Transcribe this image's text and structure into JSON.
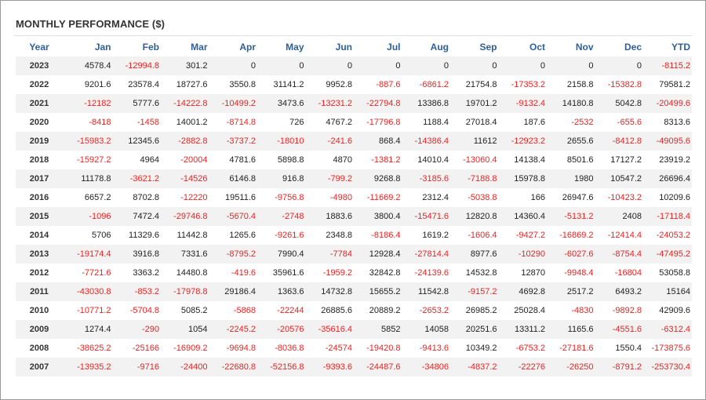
{
  "title": "MONTHLY PERFORMANCE ($)",
  "colors": {
    "header": "#2f5f98",
    "negative": "#ee2222",
    "stripe": "#f2f2f2"
  },
  "headers": [
    "Year",
    "Jan",
    "Feb",
    "Mar",
    "Apr",
    "May",
    "Jun",
    "Jul",
    "Aug",
    "Sep",
    "Oct",
    "Nov",
    "Dec",
    "YTD"
  ],
  "rows": [
    {
      "year": "2023",
      "values": [
        "4578.4",
        "-12994.8",
        "301.2",
        "0",
        "0",
        "0",
        "0",
        "0",
        "0",
        "0",
        "0",
        "0",
        "-8115.2"
      ]
    },
    {
      "year": "2022",
      "values": [
        "9201.6",
        "23578.4",
        "18727.6",
        "3550.8",
        "31141.2",
        "9952.8",
        "-887.6",
        "-6861.2",
        "21754.8",
        "-17353.2",
        "2158.8",
        "-15382.8",
        "79581.2"
      ]
    },
    {
      "year": "2021",
      "values": [
        "-12182",
        "5777.6",
        "-14222.8",
        "-10499.2",
        "3473.6",
        "-13231.2",
        "-22794.8",
        "13386.8",
        "19701.2",
        "-9132.4",
        "14180.8",
        "5042.8",
        "-20499.6"
      ]
    },
    {
      "year": "2020",
      "values": [
        "-8418",
        "-1458",
        "14001.2",
        "-8714.8",
        "726",
        "4767.2",
        "-17796.8",
        "1188.4",
        "27018.4",
        "187.6",
        "-2532",
        "-655.6",
        "8313.6"
      ]
    },
    {
      "year": "2019",
      "values": [
        "-15983.2",
        "12345.6",
        "-2882.8",
        "-3737.2",
        "-18010",
        "-241.6",
        "868.4",
        "-14386.4",
        "11612",
        "-12923.2",
        "2655.6",
        "-8412.8",
        "-49095.6"
      ]
    },
    {
      "year": "2018",
      "values": [
        "-15927.2",
        "4964",
        "-20004",
        "4781.6",
        "5898.8",
        "4870",
        "-1381.2",
        "14010.4",
        "-13060.4",
        "14138.4",
        "8501.6",
        "17127.2",
        "23919.2"
      ]
    },
    {
      "year": "2017",
      "values": [
        "11178.8",
        "-3621.2",
        "-14526",
        "6146.8",
        "916.8",
        "-799.2",
        "9268.8",
        "-3185.6",
        "-7188.8",
        "15978.8",
        "1980",
        "10547.2",
        "26696.4"
      ]
    },
    {
      "year": "2016",
      "values": [
        "6657.2",
        "8702.8",
        "-12220",
        "19511.6",
        "-9756.8",
        "-4980",
        "-11669.2",
        "2312.4",
        "-5038.8",
        "166",
        "26947.6",
        "-10423.2",
        "10209.6"
      ]
    },
    {
      "year": "2015",
      "values": [
        "-1096",
        "7472.4",
        "-29746.8",
        "-5670.4",
        "-2748",
        "1883.6",
        "3800.4",
        "-15471.6",
        "12820.8",
        "14360.4",
        "-5131.2",
        "2408",
        "-17118.4"
      ]
    },
    {
      "year": "2014",
      "values": [
        "5706",
        "11329.6",
        "11442.8",
        "1265.6",
        "-9261.6",
        "2348.8",
        "-8186.4",
        "1619.2",
        "-1606.4",
        "-9427.2",
        "-16869.2",
        "-12414.4",
        "-24053.2"
      ]
    },
    {
      "year": "2013",
      "values": [
        "-19174.4",
        "3916.8",
        "7331.6",
        "-8795.2",
        "7990.4",
        "-7784",
        "12928.4",
        "-27814.4",
        "8977.6",
        "-10290",
        "-6027.6",
        "-8754.4",
        "-47495.2"
      ]
    },
    {
      "year": "2012",
      "values": [
        "-7721.6",
        "3363.2",
        "14480.8",
        "-419.6",
        "35961.6",
        "-1959.2",
        "32842.8",
        "-24139.6",
        "14532.8",
        "12870",
        "-9948.4",
        "-16804",
        "53058.8"
      ]
    },
    {
      "year": "2011",
      "values": [
        "-43030.8",
        "-853.2",
        "-17978.8",
        "29186.4",
        "1363.6",
        "14732.8",
        "15655.2",
        "11542.8",
        "-9157.2",
        "4692.8",
        "2517.2",
        "6493.2",
        "15164"
      ]
    },
    {
      "year": "2010",
      "values": [
        "-10771.2",
        "-5704.8",
        "5085.2",
        "-5868",
        "-22244",
        "26885.6",
        "20889.2",
        "-2653.2",
        "26985.2",
        "25028.4",
        "-4830",
        "-9892.8",
        "42909.6"
      ]
    },
    {
      "year": "2009",
      "values": [
        "1274.4",
        "-290",
        "1054",
        "-2245.2",
        "-20576",
        "-35616.4",
        "5852",
        "14058",
        "20251.6",
        "13311.2",
        "1165.6",
        "-4551.6",
        "-6312.4"
      ]
    },
    {
      "year": "2008",
      "values": [
        "-38625.2",
        "-25166",
        "-16909.2",
        "-9694.8",
        "-8036.8",
        "-24574",
        "-19420.8",
        "-9413.6",
        "10349.2",
        "-6753.2",
        "-27181.6",
        "1550.4",
        "-173875.6"
      ]
    },
    {
      "year": "2007",
      "values": [
        "-13935.2",
        "-9716",
        "-24400",
        "-22680.8",
        "-52156.8",
        "-9393.6",
        "-24487.6",
        "-34806",
        "-4837.2",
        "-22276",
        "-26250",
        "-8791.2",
        "-253730.4"
      ]
    }
  ]
}
